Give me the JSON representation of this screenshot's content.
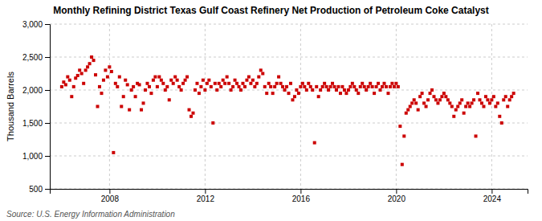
{
  "chart_data": {
    "type": "scatter",
    "title": "Monthly Refining District Texas Gulf Coast Refinery Net Production of Petroleum Coke Catalyst",
    "ylabel": "Thousand Barrels",
    "source": "Source: U.S. Energy Information Administration",
    "color": "#cc0000",
    "marker": "square",
    "grid": true,
    "xlim": [
      2005.5,
      2025.5
    ],
    "xticks": [
      2008,
      2012,
      2016,
      2020,
      2024
    ],
    "ylim": [
      500,
      3000
    ],
    "yticks": [
      500,
      {
        "value": 1000,
        "label": "1,000"
      },
      {
        "value": 1500,
        "label": "1,500"
      },
      {
        "value": 2000,
        "label": "2,000"
      },
      {
        "value": 2500,
        "label": "2,500"
      },
      {
        "value": 3000,
        "label": "3,000"
      }
    ],
    "x": [
      2006.0,
      2006.083,
      2006.167,
      2006.25,
      2006.333,
      2006.417,
      2006.5,
      2006.583,
      2006.667,
      2006.75,
      2006.833,
      2006.917,
      2007.0,
      2007.083,
      2007.167,
      2007.25,
      2007.333,
      2007.417,
      2007.5,
      2007.583,
      2007.667,
      2007.75,
      2007.833,
      2007.917,
      2008.0,
      2008.083,
      2008.167,
      2008.25,
      2008.333,
      2008.417,
      2008.5,
      2008.583,
      2008.667,
      2008.75,
      2008.833,
      2008.917,
      2009.0,
      2009.083,
      2009.167,
      2009.25,
      2009.333,
      2009.417,
      2009.5,
      2009.583,
      2009.667,
      2009.75,
      2009.833,
      2009.917,
      2010.0,
      2010.083,
      2010.167,
      2010.25,
      2010.333,
      2010.417,
      2010.5,
      2010.583,
      2010.667,
      2010.75,
      2010.833,
      2010.917,
      2011.0,
      2011.083,
      2011.167,
      2011.25,
      2011.333,
      2011.417,
      2011.5,
      2011.583,
      2011.667,
      2011.75,
      2011.833,
      2011.917,
      2012.0,
      2012.083,
      2012.167,
      2012.25,
      2012.333,
      2012.417,
      2012.5,
      2012.583,
      2012.667,
      2012.75,
      2012.833,
      2012.917,
      2013.0,
      2013.083,
      2013.167,
      2013.25,
      2013.333,
      2013.417,
      2013.5,
      2013.583,
      2013.667,
      2013.75,
      2013.833,
      2013.917,
      2014.0,
      2014.083,
      2014.167,
      2014.25,
      2014.333,
      2014.417,
      2014.5,
      2014.583,
      2014.667,
      2014.75,
      2014.833,
      2014.917,
      2015.0,
      2015.083,
      2015.167,
      2015.25,
      2015.333,
      2015.417,
      2015.5,
      2015.583,
      2015.667,
      2015.75,
      2015.833,
      2015.917,
      2016.0,
      2016.083,
      2016.167,
      2016.25,
      2016.333,
      2016.417,
      2016.5,
      2016.583,
      2016.667,
      2016.75,
      2016.833,
      2016.917,
      2017.0,
      2017.083,
      2017.167,
      2017.25,
      2017.333,
      2017.417,
      2017.5,
      2017.583,
      2017.667,
      2017.75,
      2017.833,
      2017.917,
      2018.0,
      2018.083,
      2018.167,
      2018.25,
      2018.333,
      2018.417,
      2018.5,
      2018.583,
      2018.667,
      2018.75,
      2018.833,
      2018.917,
      2019.0,
      2019.083,
      2019.167,
      2019.25,
      2019.333,
      2019.417,
      2019.5,
      2019.583,
      2019.667,
      2019.75,
      2019.833,
      2019.917,
      2020.0,
      2020.083,
      2020.167,
      2020.25,
      2020.333,
      2020.417,
      2020.5,
      2020.583,
      2020.667,
      2020.75,
      2020.833,
      2020.917,
      2021.0,
      2021.083,
      2021.167,
      2021.25,
      2021.333,
      2021.417,
      2021.5,
      2021.583,
      2021.667,
      2021.75,
      2021.833,
      2021.917,
      2022.0,
      2022.083,
      2022.167,
      2022.25,
      2022.333,
      2022.417,
      2022.5,
      2022.583,
      2022.667,
      2022.75,
      2022.833,
      2022.917,
      2023.0,
      2023.083,
      2023.167,
      2023.25,
      2023.333,
      2023.417,
      2023.5,
      2023.583,
      2023.667,
      2023.75,
      2023.833,
      2023.917,
      2024.0,
      2024.083,
      2024.167,
      2024.25,
      2024.333,
      2024.417,
      2024.5,
      2024.583,
      2024.667,
      2024.75,
      2024.833,
      2024.917
    ],
    "values": [
      2050,
      2120,
      2080,
      2200,
      2150,
      1900,
      2050,
      2180,
      2220,
      2300,
      2250,
      2100,
      2300,
      2350,
      2400,
      2500,
      2450,
      2230,
      1750,
      2050,
      1950,
      2150,
      2300,
      2200,
      2350,
      2280,
      1050,
      2100,
      2050,
      2200,
      1750,
      1900,
      2150,
      2080,
      1700,
      2000,
      2050,
      1900,
      2100,
      2080,
      1700,
      1800,
      2000,
      2100,
      2050,
      1950,
      2150,
      2200,
      2050,
      2200,
      2150,
      2100,
      2000,
      2050,
      1850,
      2150,
      2100,
      2200,
      2150,
      2050,
      2000,
      2100,
      2150,
      2200,
      1700,
      1600,
      1650,
      2000,
      2100,
      1950,
      2050,
      2150,
      2000,
      2100,
      2150,
      2050,
      1500,
      2100,
      2000,
      2100,
      2050,
      2150,
      2100,
      2200,
      2100,
      2000,
      2050,
      2150,
      2100,
      2050,
      2000,
      2100,
      2050,
      2150,
      2200,
      2100,
      2150,
      2050,
      2100,
      2200,
      2300,
      2250,
      2050,
      1950,
      2100,
      2050,
      1950,
      2050,
      2100,
      2200,
      2100,
      2050,
      2000,
      2050,
      1950,
      2100,
      1850,
      1900,
      2000,
      1950,
      2050,
      2100,
      2050,
      2000,
      2100,
      2050,
      2000,
      1200,
      2050,
      1900,
      2000,
      2050,
      2100,
      2050,
      2000,
      2050,
      2100,
      2050,
      2000,
      2050,
      1950,
      2050,
      2000,
      1950,
      2000,
      2050,
      2100,
      2050,
      2000,
      1950,
      2050,
      2100,
      2050,
      2000,
      2050,
      2100,
      2050,
      1950,
      2050,
      2100,
      2000,
      2050,
      2100,
      2050,
      1950,
      2050,
      2100,
      2050,
      2100,
      2050,
      1450,
      870,
      1300,
      1650,
      1700,
      1750,
      1800,
      1850,
      1800,
      1700,
      1900,
      1950,
      1800,
      1750,
      1850,
      1950,
      2000,
      1900,
      1850,
      1800,
      1850,
      1900,
      1950,
      1900,
      1850,
      1800,
      1750,
      1600,
      1700,
      1750,
      1800,
      1850,
      1650,
      1750,
      1800,
      1750,
      1800,
      1850,
      1300,
      1950,
      1850,
      1800,
      1750,
      1900,
      1850,
      1800,
      1850,
      1900,
      1750,
      1800,
      1600,
      1500,
      1850,
      1900,
      1750,
      1850,
      1900,
      1950
    ]
  }
}
